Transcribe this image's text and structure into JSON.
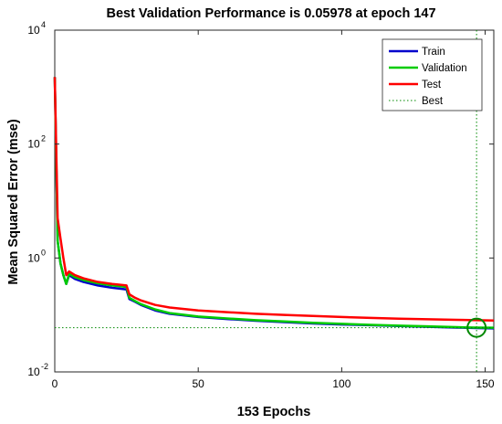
{
  "chart_data": {
    "type": "line",
    "title": "Best Validation Performance is 0.05978 at epoch 147",
    "xlabel": "153 Epochs",
    "ylabel": "Mean Squared Error  (mse)",
    "xlim": [
      0,
      153
    ],
    "ylim": [
      0.01,
      10000
    ],
    "yscale": "log",
    "grid": false,
    "legend_position": "top-right",
    "x_ticks": [
      {
        "value": 0,
        "label": "0"
      },
      {
        "value": 50,
        "label": "50"
      },
      {
        "value": 100,
        "label": "100"
      },
      {
        "value": 150,
        "label": "150"
      }
    ],
    "y_ticks": [
      {
        "value": 0.01,
        "base": "10",
        "exp": "-2"
      },
      {
        "value": 1,
        "base": "10",
        "exp": "0"
      },
      {
        "value": 100,
        "base": "10",
        "exp": "2"
      },
      {
        "value": 10000,
        "base": "10",
        "exp": "4"
      }
    ],
    "series": [
      {
        "name": "Train",
        "color": "#0000cc",
        "x": [
          0,
          1,
          2,
          3,
          4,
          5,
          7,
          10,
          15,
          20,
          25,
          26,
          28,
          30,
          35,
          40,
          50,
          60,
          70,
          80,
          90,
          100,
          110,
          120,
          130,
          140,
          147,
          153
        ],
        "y": [
          1500,
          2.0,
          0.8,
          0.5,
          0.35,
          0.5,
          0.43,
          0.38,
          0.33,
          0.3,
          0.28,
          0.19,
          0.17,
          0.15,
          0.12,
          0.105,
          0.092,
          0.085,
          0.079,
          0.075,
          0.071,
          0.068,
          0.066,
          0.064,
          0.062,
          0.06,
          0.059,
          0.058
        ]
      },
      {
        "name": "Validation",
        "color": "#00cc00",
        "x": [
          0,
          1,
          2,
          3,
          4,
          5,
          7,
          10,
          15,
          20,
          25,
          26,
          28,
          30,
          35,
          40,
          50,
          60,
          70,
          80,
          90,
          100,
          110,
          120,
          130,
          140,
          147,
          153
        ],
        "y": [
          1500,
          2.0,
          0.8,
          0.5,
          0.35,
          0.53,
          0.46,
          0.41,
          0.36,
          0.33,
          0.31,
          0.2,
          0.175,
          0.155,
          0.125,
          0.108,
          0.094,
          0.087,
          0.081,
          0.077,
          0.073,
          0.07,
          0.067,
          0.065,
          0.063,
          0.061,
          0.06,
          0.0598
        ]
      },
      {
        "name": "Test",
        "color": "#ff0000",
        "x": [
          0,
          1,
          2,
          3,
          4,
          5,
          7,
          10,
          15,
          20,
          25,
          26,
          28,
          30,
          35,
          40,
          50,
          60,
          70,
          80,
          90,
          100,
          110,
          120,
          130,
          140,
          147,
          153
        ],
        "y": [
          1500,
          5.0,
          2.2,
          1.0,
          0.5,
          0.58,
          0.5,
          0.44,
          0.38,
          0.35,
          0.33,
          0.23,
          0.2,
          0.18,
          0.15,
          0.135,
          0.12,
          0.112,
          0.105,
          0.1,
          0.096,
          0.092,
          0.089,
          0.086,
          0.084,
          0.082,
          0.081,
          0.08
        ]
      }
    ],
    "best": {
      "name": "Best",
      "color": "#008800",
      "epoch": 147,
      "value": 0.05978
    }
  }
}
